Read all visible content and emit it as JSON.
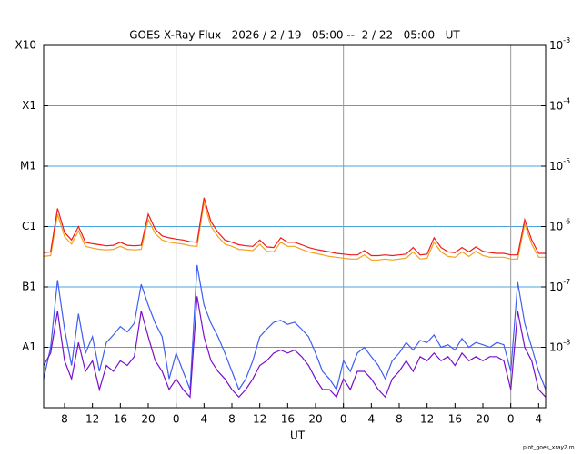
{
  "chart_data": {
    "type": "line",
    "title": "GOES X-Ray Flux   2026 / 2 / 19   05:00 --  2 / 22   05:00   UT",
    "xlabel": "UT",
    "footnote": "plot_goes_xray2.m",
    "log_y": true,
    "grid": true,
    "grid_color": "#4aa3df",
    "day_line_color": "#999999",
    "day_boundaries": [
      19,
      43,
      67
    ],
    "xlim": [
      0,
      72
    ],
    "xticks": [
      {
        "value": 3,
        "label": "8"
      },
      {
        "value": 7,
        "label": "12"
      },
      {
        "value": 11,
        "label": "16"
      },
      {
        "value": 15,
        "label": "20"
      },
      {
        "value": 19,
        "label": "0"
      },
      {
        "value": 23,
        "label": "4"
      },
      {
        "value": 27,
        "label": "8"
      },
      {
        "value": 31,
        "label": "12"
      },
      {
        "value": 35,
        "label": "16"
      },
      {
        "value": 39,
        "label": "20"
      },
      {
        "value": 43,
        "label": "0"
      },
      {
        "value": 47,
        "label": "4"
      },
      {
        "value": 51,
        "label": "8"
      },
      {
        "value": 55,
        "label": "12"
      },
      {
        "value": 59,
        "label": "16"
      },
      {
        "value": 63,
        "label": "20"
      },
      {
        "value": 67,
        "label": "0"
      },
      {
        "value": 71,
        "label": "4"
      }
    ],
    "ylim": [
      1e-09,
      0.001
    ],
    "yticks": [
      {
        "value": 0.001,
        "label": "X10"
      },
      {
        "value": 0.0001,
        "label": "X1"
      },
      {
        "value": 1e-05,
        "label": "M1"
      },
      {
        "value": 1e-06,
        "label": "C1"
      },
      {
        "value": 1e-07,
        "label": "B1"
      },
      {
        "value": 1e-08,
        "label": "A1"
      }
    ],
    "y2ticks": [
      {
        "value": 0.001,
        "label": "10",
        "exponent": "-3"
      },
      {
        "value": 0.0001,
        "label": "10",
        "exponent": "-4"
      },
      {
        "value": 1e-05,
        "label": "10",
        "exponent": "-5"
      },
      {
        "value": 1e-06,
        "label": "10",
        "exponent": "-6"
      },
      {
        "value": 1e-07,
        "label": "10",
        "exponent": "-7"
      },
      {
        "value": 1e-08,
        "label": "10",
        "exponent": "-8"
      }
    ],
    "x": [
      0,
      1,
      2,
      3,
      4,
      5,
      6,
      7,
      8,
      9,
      10,
      11,
      12,
      13,
      14,
      15,
      16,
      17,
      18,
      19,
      20,
      21,
      22,
      23,
      24,
      25,
      26,
      27,
      28,
      29,
      30,
      31,
      32,
      33,
      34,
      35,
      36,
      37,
      38,
      39,
      40,
      41,
      42,
      43,
      44,
      45,
      46,
      47,
      48,
      49,
      50,
      51,
      52,
      53,
      54,
      55,
      56,
      57,
      58,
      59,
      60,
      61,
      62,
      63,
      64,
      65,
      66,
      67,
      68,
      69,
      70,
      71,
      72
    ],
    "series": [
      {
        "color": "#f7a01c",
        "values": [
          3.2e-07,
          3.3e-07,
          1.6e-06,
          6.8e-07,
          5.1e-07,
          8.5e-07,
          4.7e-07,
          4.4e-07,
          4.2e-07,
          4.1e-07,
          4.2e-07,
          4.7e-07,
          4.2e-07,
          4.1e-07,
          4.2e-07,
          1.3e-06,
          7.6e-07,
          6e-07,
          5.5e-07,
          5.3e-07,
          5.1e-07,
          4.8e-07,
          4.7e-07,
          2.5e-06,
          1e-06,
          6.8e-07,
          5.1e-07,
          4.7e-07,
          4.2e-07,
          4.1e-07,
          4e-07,
          5.1e-07,
          3.9e-07,
          3.8e-07,
          5.5e-07,
          4.7e-07,
          4.7e-07,
          4.2e-07,
          3.8e-07,
          3.6e-07,
          3.4e-07,
          3.2e-07,
          3.1e-07,
          3e-07,
          2.9e-07,
          2.9e-07,
          3.4e-07,
          2.8e-07,
          2.8e-07,
          2.9e-07,
          2.8e-07,
          2.9e-07,
          3e-07,
          3.8e-07,
          2.9e-07,
          3e-07,
          5.5e-07,
          3.8e-07,
          3.2e-07,
          3.1e-07,
          3.8e-07,
          3.2e-07,
          3.9e-07,
          3.3e-07,
          3.1e-07,
          3.1e-07,
          3.1e-07,
          2.9e-07,
          2.9e-07,
          1.1e-06,
          5.1e-07,
          3.1e-07,
          3.1e-07
        ]
      },
      {
        "color": "#ee1c1c",
        "values": [
          3.7e-07,
          3.8e-07,
          2e-06,
          8e-07,
          6e-07,
          1e-06,
          5.5e-07,
          5.2e-07,
          5e-07,
          4.8e-07,
          4.9e-07,
          5.5e-07,
          4.9e-07,
          4.8e-07,
          4.9e-07,
          1.6e-06,
          9e-07,
          7e-07,
          6.5e-07,
          6.2e-07,
          6e-07,
          5.6e-07,
          5.5e-07,
          3e-06,
          1.2e-06,
          8e-07,
          6e-07,
          5.5e-07,
          5e-07,
          4.8e-07,
          4.7e-07,
          6e-07,
          4.6e-07,
          4.5e-07,
          6.5e-07,
          5.5e-07,
          5.5e-07,
          5e-07,
          4.5e-07,
          4.2e-07,
          4e-07,
          3.8e-07,
          3.6e-07,
          3.5e-07,
          3.4e-07,
          3.4e-07,
          4e-07,
          3.3e-07,
          3.3e-07,
          3.4e-07,
          3.3e-07,
          3.4e-07,
          3.5e-07,
          4.5e-07,
          3.4e-07,
          3.5e-07,
          6.5e-07,
          4.5e-07,
          3.8e-07,
          3.7e-07,
          4.5e-07,
          3.8e-07,
          4.6e-07,
          3.9e-07,
          3.7e-07,
          3.6e-07,
          3.6e-07,
          3.4e-07,
          3.4e-07,
          1.3e-06,
          6e-07,
          3.6e-07,
          3.6e-07
        ]
      },
      {
        "color": "#3f5ff0",
        "values": [
          3e-09,
          1e-08,
          1.3e-07,
          2e-08,
          5e-09,
          3.6e-08,
          8e-09,
          1.5e-08,
          4e-09,
          1.2e-08,
          1.6e-08,
          2.2e-08,
          1.8e-08,
          2.5e-08,
          1.1e-07,
          5e-08,
          2.5e-08,
          1.5e-08,
          3e-09,
          8e-09,
          4e-09,
          2e-09,
          2.3e-07,
          5e-08,
          2.5e-08,
          1.5e-08,
          8e-09,
          4e-09,
          2e-09,
          3e-09,
          6e-09,
          1.5e-08,
          2e-08,
          2.6e-08,
          2.8e-08,
          2.4e-08,
          2.6e-08,
          2e-08,
          1.5e-08,
          8e-09,
          4e-09,
          3e-09,
          2e-09,
          6e-09,
          4e-09,
          8e-09,
          1e-08,
          7e-09,
          5e-09,
          3e-09,
          6e-09,
          8e-09,
          1.2e-08,
          9e-09,
          1.3e-08,
          1.2e-08,
          1.6e-08,
          1e-08,
          1.1e-08,
          9e-09,
          1.4e-08,
          1e-08,
          1.2e-08,
          1.1e-08,
          1e-08,
          1.2e-08,
          1.1e-08,
          4e-09,
          1.2e-07,
          2.5e-08,
          1e-08,
          4e-09,
          2e-09
        ]
      },
      {
        "color": "#7a0fc8",
        "values": [
          5e-09,
          8e-09,
          4e-08,
          6e-09,
          3e-09,
          1.2e-08,
          4e-09,
          6e-09,
          2e-09,
          5e-09,
          4e-09,
          6e-09,
          5e-09,
          7e-09,
          4e-08,
          1.5e-08,
          6e-09,
          4e-09,
          2e-09,
          3e-09,
          2e-09,
          1.5e-09,
          7e-08,
          1.5e-08,
          6e-09,
          4e-09,
          3e-09,
          2e-09,
          1.5e-09,
          2e-09,
          3e-09,
          5e-09,
          6e-09,
          8e-09,
          9e-09,
          8e-09,
          9e-09,
          7e-09,
          5e-09,
          3e-09,
          2e-09,
          2e-09,
          1.5e-09,
          3e-09,
          2e-09,
          4e-09,
          4e-09,
          3e-09,
          2e-09,
          1.5e-09,
          3e-09,
          4e-09,
          6e-09,
          4e-09,
          7e-09,
          6e-09,
          8e-09,
          6e-09,
          7e-09,
          5e-09,
          8e-09,
          6e-09,
          7e-09,
          6e-09,
          7e-09,
          7e-09,
          6e-09,
          2e-09,
          4e-08,
          1e-08,
          6e-09,
          2e-09,
          1.5e-09
        ]
      }
    ]
  }
}
